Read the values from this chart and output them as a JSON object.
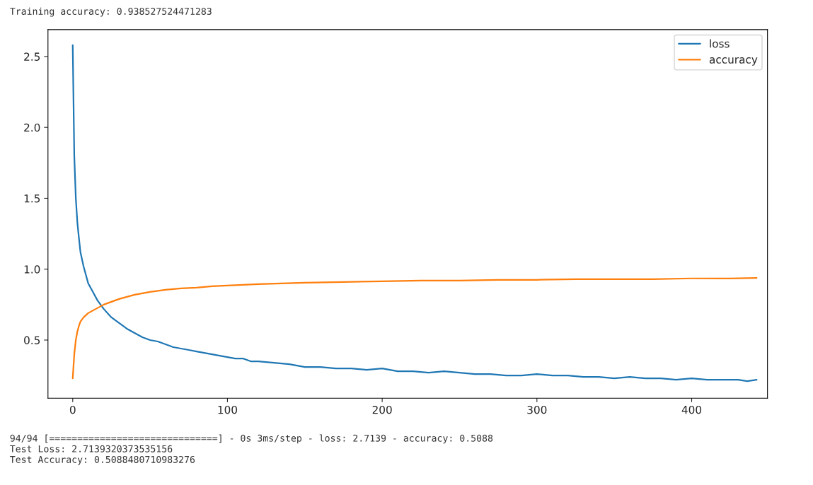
{
  "chart_data": {
    "type": "line",
    "annotations": [
      "Training accuracy: 0.938527524471283",
      "94/94 [==============================] - 0s 3ms/step - loss: 2.7139 - accuracy: 0.5088",
      "Test Loss: 2.7139320373535156",
      "Test Accuracy: 0.5088480710983276"
    ],
    "xlim": [
      -16,
      449
    ],
    "ylim": [
      0.09,
      2.69
    ],
    "xticks": [
      0,
      100,
      200,
      300,
      400
    ],
    "yticks": [
      0.5,
      {
        "value": 1,
        "label": "1.0"
      },
      1.5,
      {
        "value": 2,
        "label": "2.0"
      },
      2.5
    ],
    "grid": false,
    "legend": "top right",
    "marker": "none",
    "line_style": "solid",
    "series": [
      {
        "name": "loss",
        "color": "#1f77b4",
        "x": [
          0,
          1,
          2,
          3,
          4,
          5,
          7,
          10,
          13,
          16,
          20,
          25,
          30,
          35,
          40,
          45,
          50,
          55,
          60,
          65,
          70,
          75,
          80,
          85,
          90,
          95,
          100,
          105,
          110,
          115,
          120,
          130,
          140,
          150,
          160,
          170,
          180,
          190,
          200,
          210,
          220,
          230,
          240,
          250,
          260,
          270,
          280,
          290,
          300,
          310,
          320,
          330,
          340,
          350,
          360,
          370,
          380,
          390,
          400,
          410,
          420,
          430,
          436,
          442
        ],
        "values": [
          2.58,
          1.8,
          1.5,
          1.33,
          1.22,
          1.12,
          1.02,
          0.9,
          0.84,
          0.78,
          0.72,
          0.66,
          0.62,
          0.58,
          0.55,
          0.52,
          0.5,
          0.49,
          0.47,
          0.45,
          0.44,
          0.43,
          0.42,
          0.41,
          0.4,
          0.39,
          0.38,
          0.37,
          0.37,
          0.35,
          0.35,
          0.34,
          0.33,
          0.31,
          0.31,
          0.3,
          0.3,
          0.29,
          0.3,
          0.28,
          0.28,
          0.27,
          0.28,
          0.27,
          0.26,
          0.26,
          0.25,
          0.25,
          0.26,
          0.25,
          0.25,
          0.24,
          0.24,
          0.23,
          0.24,
          0.23,
          0.23,
          0.22,
          0.23,
          0.22,
          0.22,
          0.22,
          0.21,
          0.22
        ]
      },
      {
        "name": "accuracy",
        "color": "#ff7f0e",
        "x": [
          0,
          1,
          2,
          3,
          4,
          5,
          7,
          10,
          15,
          20,
          25,
          30,
          40,
          50,
          60,
          70,
          80,
          90,
          100,
          120,
          150,
          175,
          200,
          225,
          250,
          275,
          300,
          325,
          350,
          375,
          400,
          425,
          442
        ],
        "values": [
          0.23,
          0.4,
          0.5,
          0.56,
          0.6,
          0.63,
          0.66,
          0.69,
          0.72,
          0.75,
          0.77,
          0.79,
          0.82,
          0.84,
          0.855,
          0.865,
          0.87,
          0.88,
          0.885,
          0.895,
          0.905,
          0.91,
          0.915,
          0.92,
          0.92,
          0.925,
          0.925,
          0.93,
          0.93,
          0.93,
          0.935,
          0.935,
          0.938
        ]
      }
    ]
  }
}
